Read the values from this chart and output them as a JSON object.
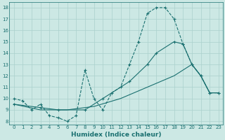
{
  "xlabel": "Humidex (Indice chaleur)",
  "xlim": [
    -0.5,
    23.5
  ],
  "ylim": [
    7.7,
    18.5
  ],
  "yticks": [
    8,
    9,
    10,
    11,
    12,
    13,
    14,
    15,
    16,
    17,
    18
  ],
  "xticks": [
    0,
    1,
    2,
    3,
    4,
    5,
    6,
    7,
    8,
    9,
    10,
    11,
    12,
    13,
    14,
    15,
    16,
    17,
    18,
    19,
    20,
    21,
    22,
    23
  ],
  "bg_color": "#cce8e4",
  "grid_color": "#aad0cc",
  "line_color": "#1a7070",
  "s1_x": [
    0,
    1,
    2,
    3,
    4,
    5,
    6,
    7,
    8,
    9,
    10,
    11,
    12,
    13,
    14,
    15,
    16,
    17,
    18,
    19,
    20,
    21,
    22,
    23
  ],
  "s1_y": [
    10,
    9.8,
    9.0,
    9.5,
    8.5,
    8.3,
    8.0,
    8.5,
    12.5,
    10.0,
    9.0,
    10.5,
    11.0,
    13.0,
    15.0,
    17.5,
    18.0,
    18.0,
    17.0,
    14.8,
    13.0,
    12.0,
    10.5,
    10.5
  ],
  "s2_x": [
    0,
    3,
    5,
    8,
    10,
    13,
    15,
    16,
    18,
    19,
    20,
    21,
    22,
    23
  ],
  "s2_y": [
    9.5,
    9.2,
    9.0,
    9.0,
    10.0,
    11.5,
    13.0,
    14.0,
    15.0,
    14.8,
    13.0,
    12.0,
    10.5,
    10.5
  ],
  "s3_x": [
    0,
    3,
    6,
    9,
    12,
    15,
    18,
    20,
    21,
    22,
    23
  ],
  "s3_y": [
    9.5,
    9.0,
    9.0,
    9.3,
    10.0,
    11.0,
    12.0,
    13.0,
    12.0,
    10.5,
    10.5
  ],
  "tick_fontsize": 5.0,
  "xlabel_fontsize": 6.5
}
